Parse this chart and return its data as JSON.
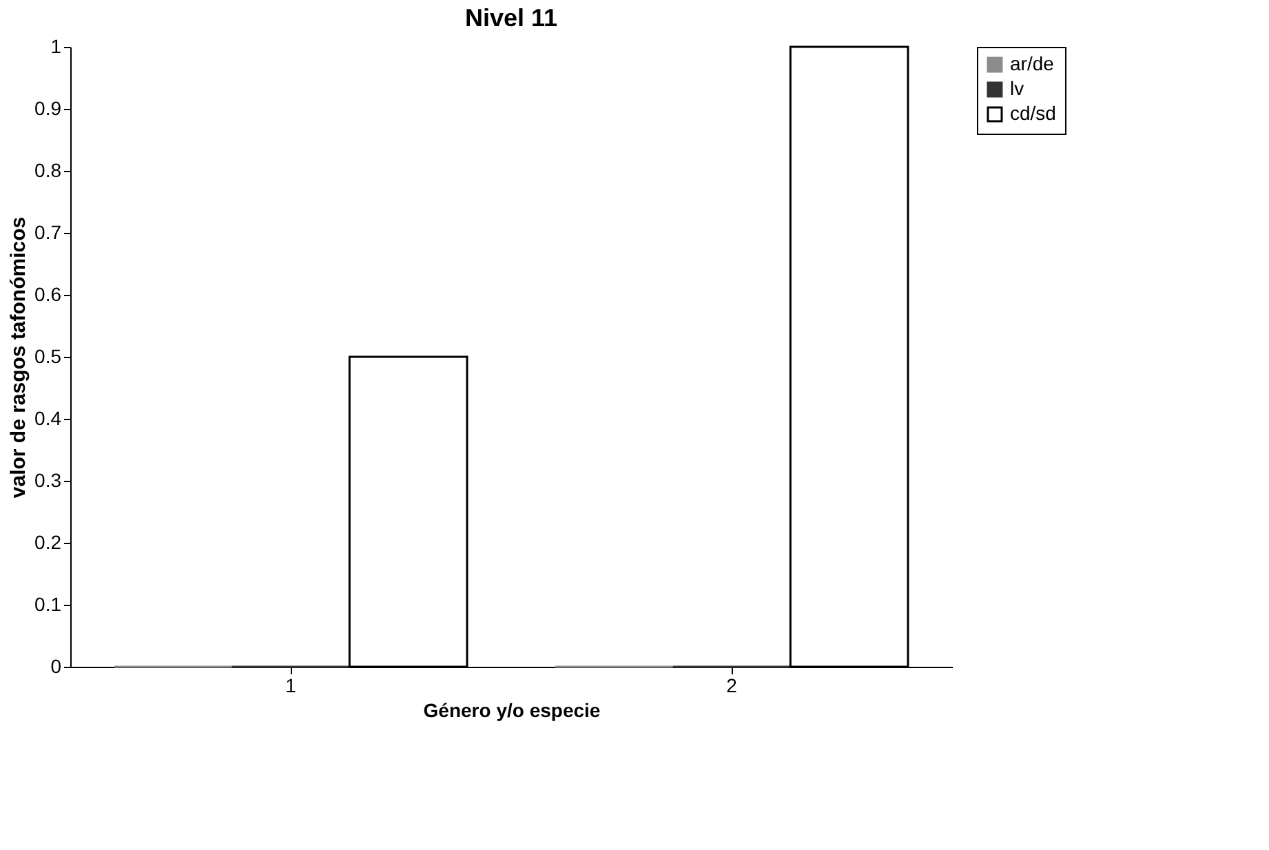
{
  "chart_data": {
    "type": "bar",
    "title": "Nivel 11",
    "xlabel": "Género y/o especie",
    "ylabel": "valor de rasgos tafonómicos",
    "categories": [
      "1",
      "2"
    ],
    "series": [
      {
        "name": "ar/de",
        "color": "#8c8c8c",
        "values": [
          0,
          0
        ]
      },
      {
        "name": "lv",
        "color": "#333333",
        "values": [
          0,
          0
        ]
      },
      {
        "name": "cd/sd",
        "color": "#ffffff",
        "values": [
          0.5,
          1
        ]
      }
    ],
    "ylim": [
      0,
      1
    ],
    "yticks": [
      0,
      0.1,
      0.2,
      0.3,
      0.4,
      0.5,
      0.6,
      0.7,
      0.8,
      0.9,
      1
    ],
    "grid": false,
    "legend": "right"
  }
}
